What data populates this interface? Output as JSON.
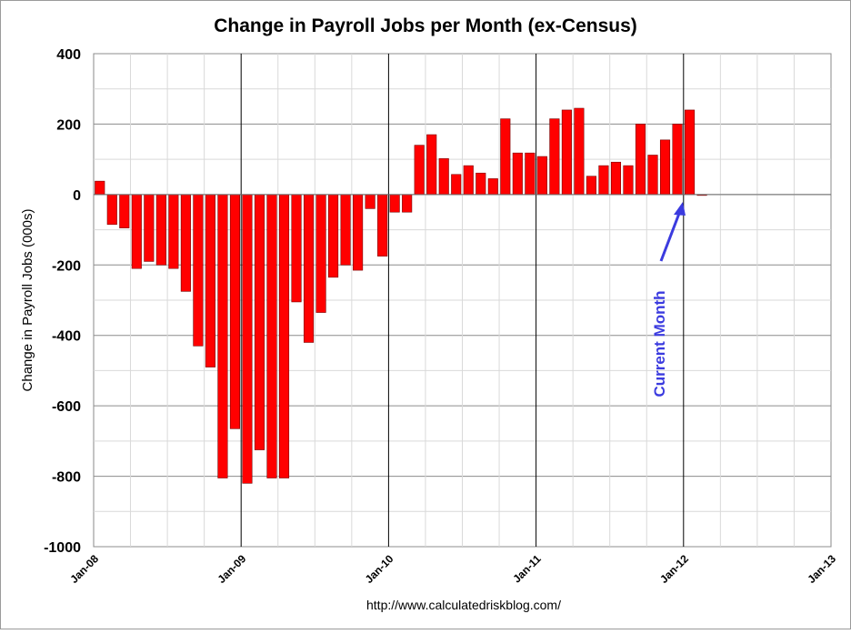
{
  "chart_data": {
    "type": "bar",
    "title": "Change in Payroll Jobs per Month (ex-Census)",
    "xlabel": "",
    "ylabel": "Change in Payroll Jobs (000s)",
    "ylim": [
      -1000,
      400
    ],
    "yticks": [
      -1000,
      -800,
      -600,
      -400,
      -200,
      0,
      200,
      400
    ],
    "xticks": [
      "Jan-08",
      "Jan-09",
      "Jan-10",
      "Jan-11",
      "Jan-12",
      "Jan-13"
    ],
    "grid": true,
    "legend": "none",
    "bar_color": "#ff0000",
    "bar_edge_color": "#7a0000",
    "annotation": {
      "text": "Current Month",
      "color": "#3b3bdf",
      "points_to": "2012-02"
    },
    "source": "http://www.calculatedriskblog.com/",
    "months": [
      "2008-01",
      "2008-02",
      "2008-03",
      "2008-04",
      "2008-05",
      "2008-06",
      "2008-07",
      "2008-08",
      "2008-09",
      "2008-10",
      "2008-11",
      "2008-12",
      "2009-01",
      "2009-02",
      "2009-03",
      "2009-04",
      "2009-05",
      "2009-06",
      "2009-07",
      "2009-08",
      "2009-09",
      "2009-10",
      "2009-11",
      "2009-12",
      "2010-01",
      "2010-02",
      "2010-03",
      "2010-04",
      "2010-05",
      "2010-06",
      "2010-07",
      "2010-08",
      "2010-09",
      "2010-10",
      "2010-11",
      "2010-12",
      "2011-01",
      "2011-02",
      "2011-03",
      "2011-04",
      "2011-05",
      "2011-06",
      "2011-07",
      "2011-08",
      "2011-09",
      "2011-10",
      "2011-11",
      "2011-12",
      "2012-01",
      "2012-02"
    ],
    "values": [
      38,
      -85,
      -95,
      -210,
      -190,
      -200,
      -210,
      -275,
      -430,
      -490,
      -805,
      -665,
      -820,
      -725,
      -805,
      -805,
      -305,
      -420,
      -335,
      -235,
      -200,
      -215,
      -40,
      -175,
      -50,
      -50,
      140,
      170,
      102,
      57,
      82,
      61,
      45,
      215,
      118,
      118,
      108,
      215,
      240,
      245,
      52,
      82,
      92,
      82,
      200,
      112,
      155,
      200,
      240,
      -2
    ]
  }
}
